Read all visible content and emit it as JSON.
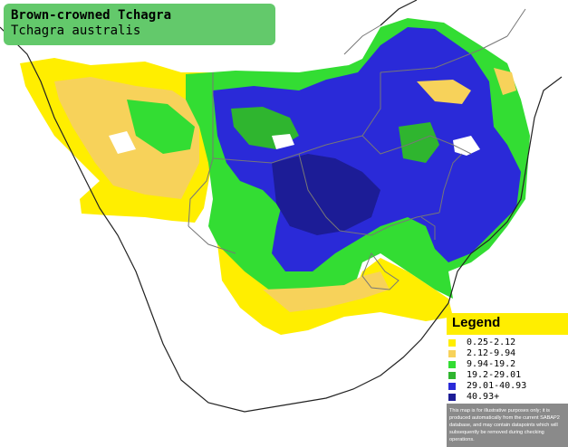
{
  "title": {
    "common_name": "Brown-crowned Tchagra",
    "scientific_name": "Tchagra australis"
  },
  "legend": {
    "title": "Legend",
    "items": [
      {
        "label": "0.25-2.12",
        "color": "#ffee00"
      },
      {
        "label": "2.12-9.94",
        "color": "#f7d25a"
      },
      {
        "label": "9.94-19.2",
        "color": "#33dd33"
      },
      {
        "label": "19.2-29.01",
        "color": "#2fb52f"
      },
      {
        "label": "29.01-40.93",
        "color": "#2a2ad8"
      },
      {
        "label": "40.93+",
        "color": "#1c1c96"
      }
    ],
    "disclaimer": "This map is for illustrative purposes only; it is produced automatically from the current SABAP2 database, and may contain datapoints which will subsequently be removed during checking operations."
  },
  "colors": {
    "background": "#ffffff",
    "title_box": "#63c96b",
    "legend_header": "#ffee00",
    "disclaimer_box": "#8a8a8a",
    "borders": "#777777",
    "coast": "#222222"
  }
}
